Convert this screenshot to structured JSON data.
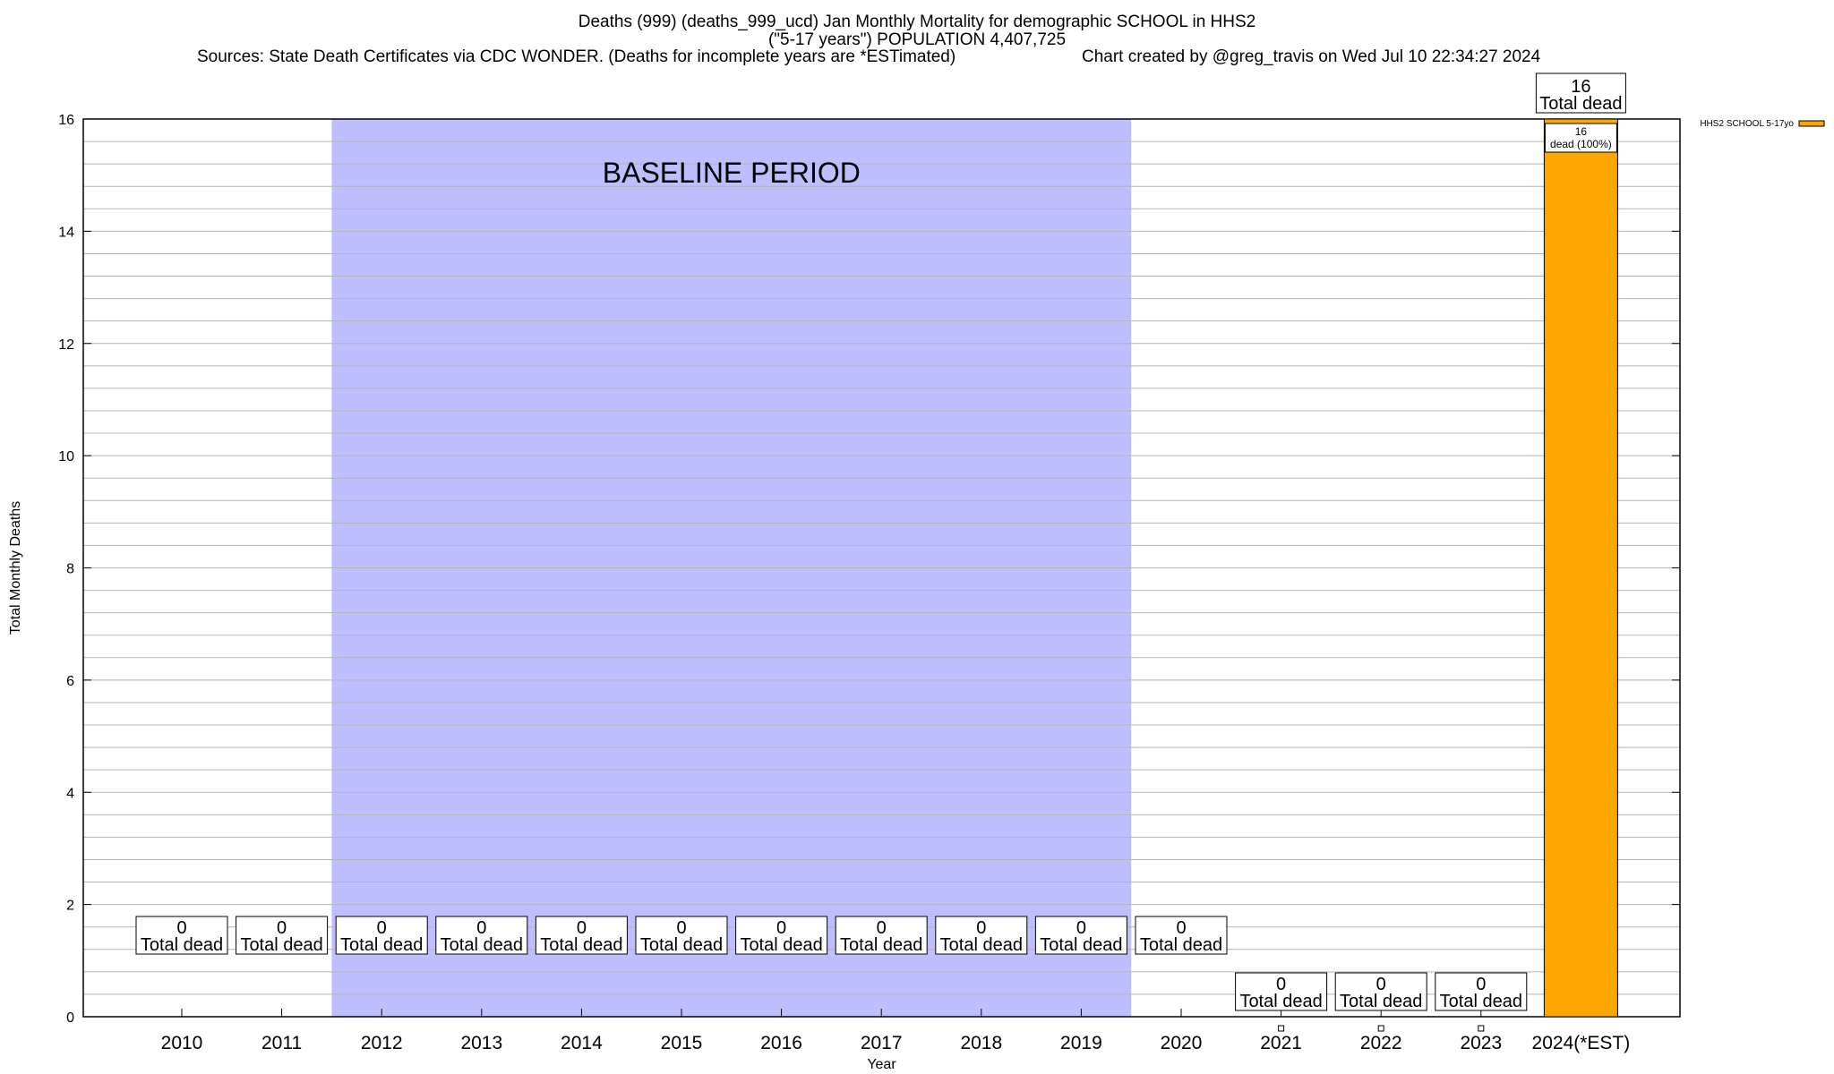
{
  "header": {
    "title_line1": "Deaths (999) (deaths_999_ucd) Jan Monthly Mortality for demographic SCHOOL in HHS2",
    "title_line2": "(\"5-17 years\") POPULATION 4,407,725",
    "sources": "Sources: State Death Certificates via CDC WONDER. (Deaths for incomplete years are *ESTimated)",
    "credit": "Chart created by @greg_travis on Wed Jul 10 22:34:27 2024"
  },
  "chart_data": {
    "type": "bar",
    "xlabel": "Year",
    "ylabel": "Total Monthly Deaths",
    "ylim": [
      0,
      16
    ],
    "y_ticks": [
      0,
      2,
      4,
      6,
      8,
      10,
      12,
      14,
      16
    ],
    "y_minor_step": 0.4,
    "grid": true,
    "legend_position": "top-right",
    "categories": [
      "2010",
      "2011",
      "2012",
      "2013",
      "2014",
      "2015",
      "2016",
      "2017",
      "2018",
      "2019",
      "2020",
      "2021",
      "2022",
      "2023",
      "2024(*EST)"
    ],
    "series": [
      {
        "name": "HHS2 SCHOOL 5-17yo",
        "color": "#FFA500",
        "values": [
          0,
          0,
          0,
          0,
          0,
          0,
          0,
          0,
          0,
          0,
          0,
          0,
          0,
          0,
          16
        ]
      }
    ],
    "total_label_suffix": "Total dead",
    "segment_label": "dead (100%)",
    "baseline": {
      "label": "BASELINE PERIOD",
      "from": "2012",
      "to": "2019",
      "color": "#BFBFFF"
    }
  }
}
